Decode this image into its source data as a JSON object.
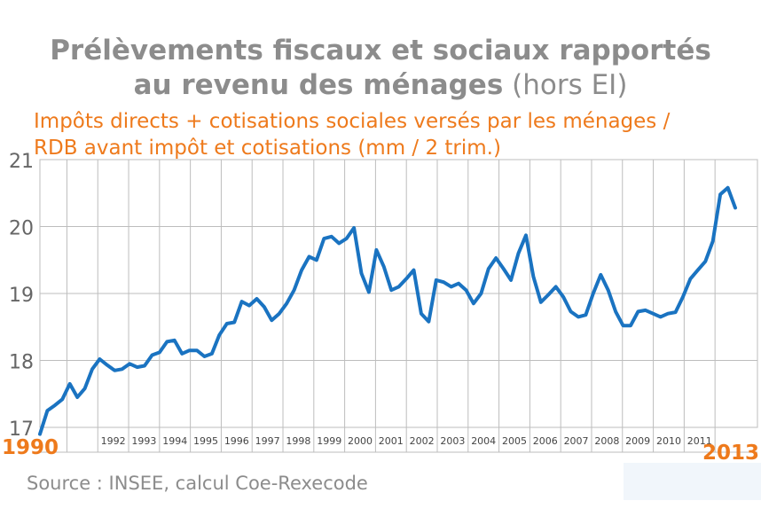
{
  "title": {
    "line1": "Prélèvements fiscaux et sociaux rapportés",
    "line2_bold": "au revenu des ménages",
    "line2_light": " (hors EI)"
  },
  "subtitle": {
    "line1": "Impôts directs + cotisations sociales versés par les ménages /",
    "line2": "RDB avant impôt et cotisations (mm / 2 trim.)"
  },
  "source": "Source : INSEE, calcul Coe-Rexecode",
  "chart_data": {
    "type": "line",
    "line_color": "#1a73c1",
    "accent_color": "#ee7a1c",
    "ylim": [
      17,
      21
    ],
    "yticks": [
      "17",
      "18",
      "19",
      "20",
      "21"
    ],
    "year_labels": [
      "1992",
      "1993",
      "1994",
      "1995",
      "1996",
      "1997",
      "1998",
      "1999",
      "2000",
      "2001",
      "2002",
      "2003",
      "2004",
      "2005",
      "2006",
      "2007",
      "2008",
      "2009",
      "2010",
      "2011"
    ],
    "start_label": "1990",
    "end_label": "2013",
    "grid": true,
    "series": [
      {
        "values": [
          16.9,
          17.25,
          17.33,
          17.42,
          17.65,
          17.45,
          17.58,
          17.87,
          18.02,
          17.93,
          17.85,
          17.87,
          17.95,
          17.9,
          17.92,
          18.08,
          18.12,
          18.28,
          18.3,
          18.1,
          18.15,
          18.15,
          18.06,
          18.1,
          18.38,
          18.55,
          18.57,
          18.88,
          18.82,
          18.92,
          18.8,
          18.6,
          18.7,
          18.85,
          19.05,
          19.35,
          19.55,
          19.5,
          19.82,
          19.85,
          19.75,
          19.82,
          19.98,
          19.3,
          19.02,
          19.65,
          19.4,
          19.05,
          19.1,
          19.22,
          19.35,
          18.7,
          18.58,
          19.2,
          19.17,
          19.1,
          19.15,
          19.05,
          18.85,
          19.0,
          19.37,
          19.53,
          19.37,
          19.2,
          19.6,
          19.87,
          19.25,
          18.87,
          18.98,
          19.1,
          18.95,
          18.73,
          18.65,
          18.68,
          19.0,
          19.28,
          19.05,
          18.73,
          18.52,
          18.52,
          18.73,
          18.75,
          18.7,
          18.65,
          18.7,
          18.72,
          18.95,
          19.22,
          19.35,
          19.48,
          19.78,
          20.48,
          20.58,
          20.28
        ]
      }
    ]
  }
}
